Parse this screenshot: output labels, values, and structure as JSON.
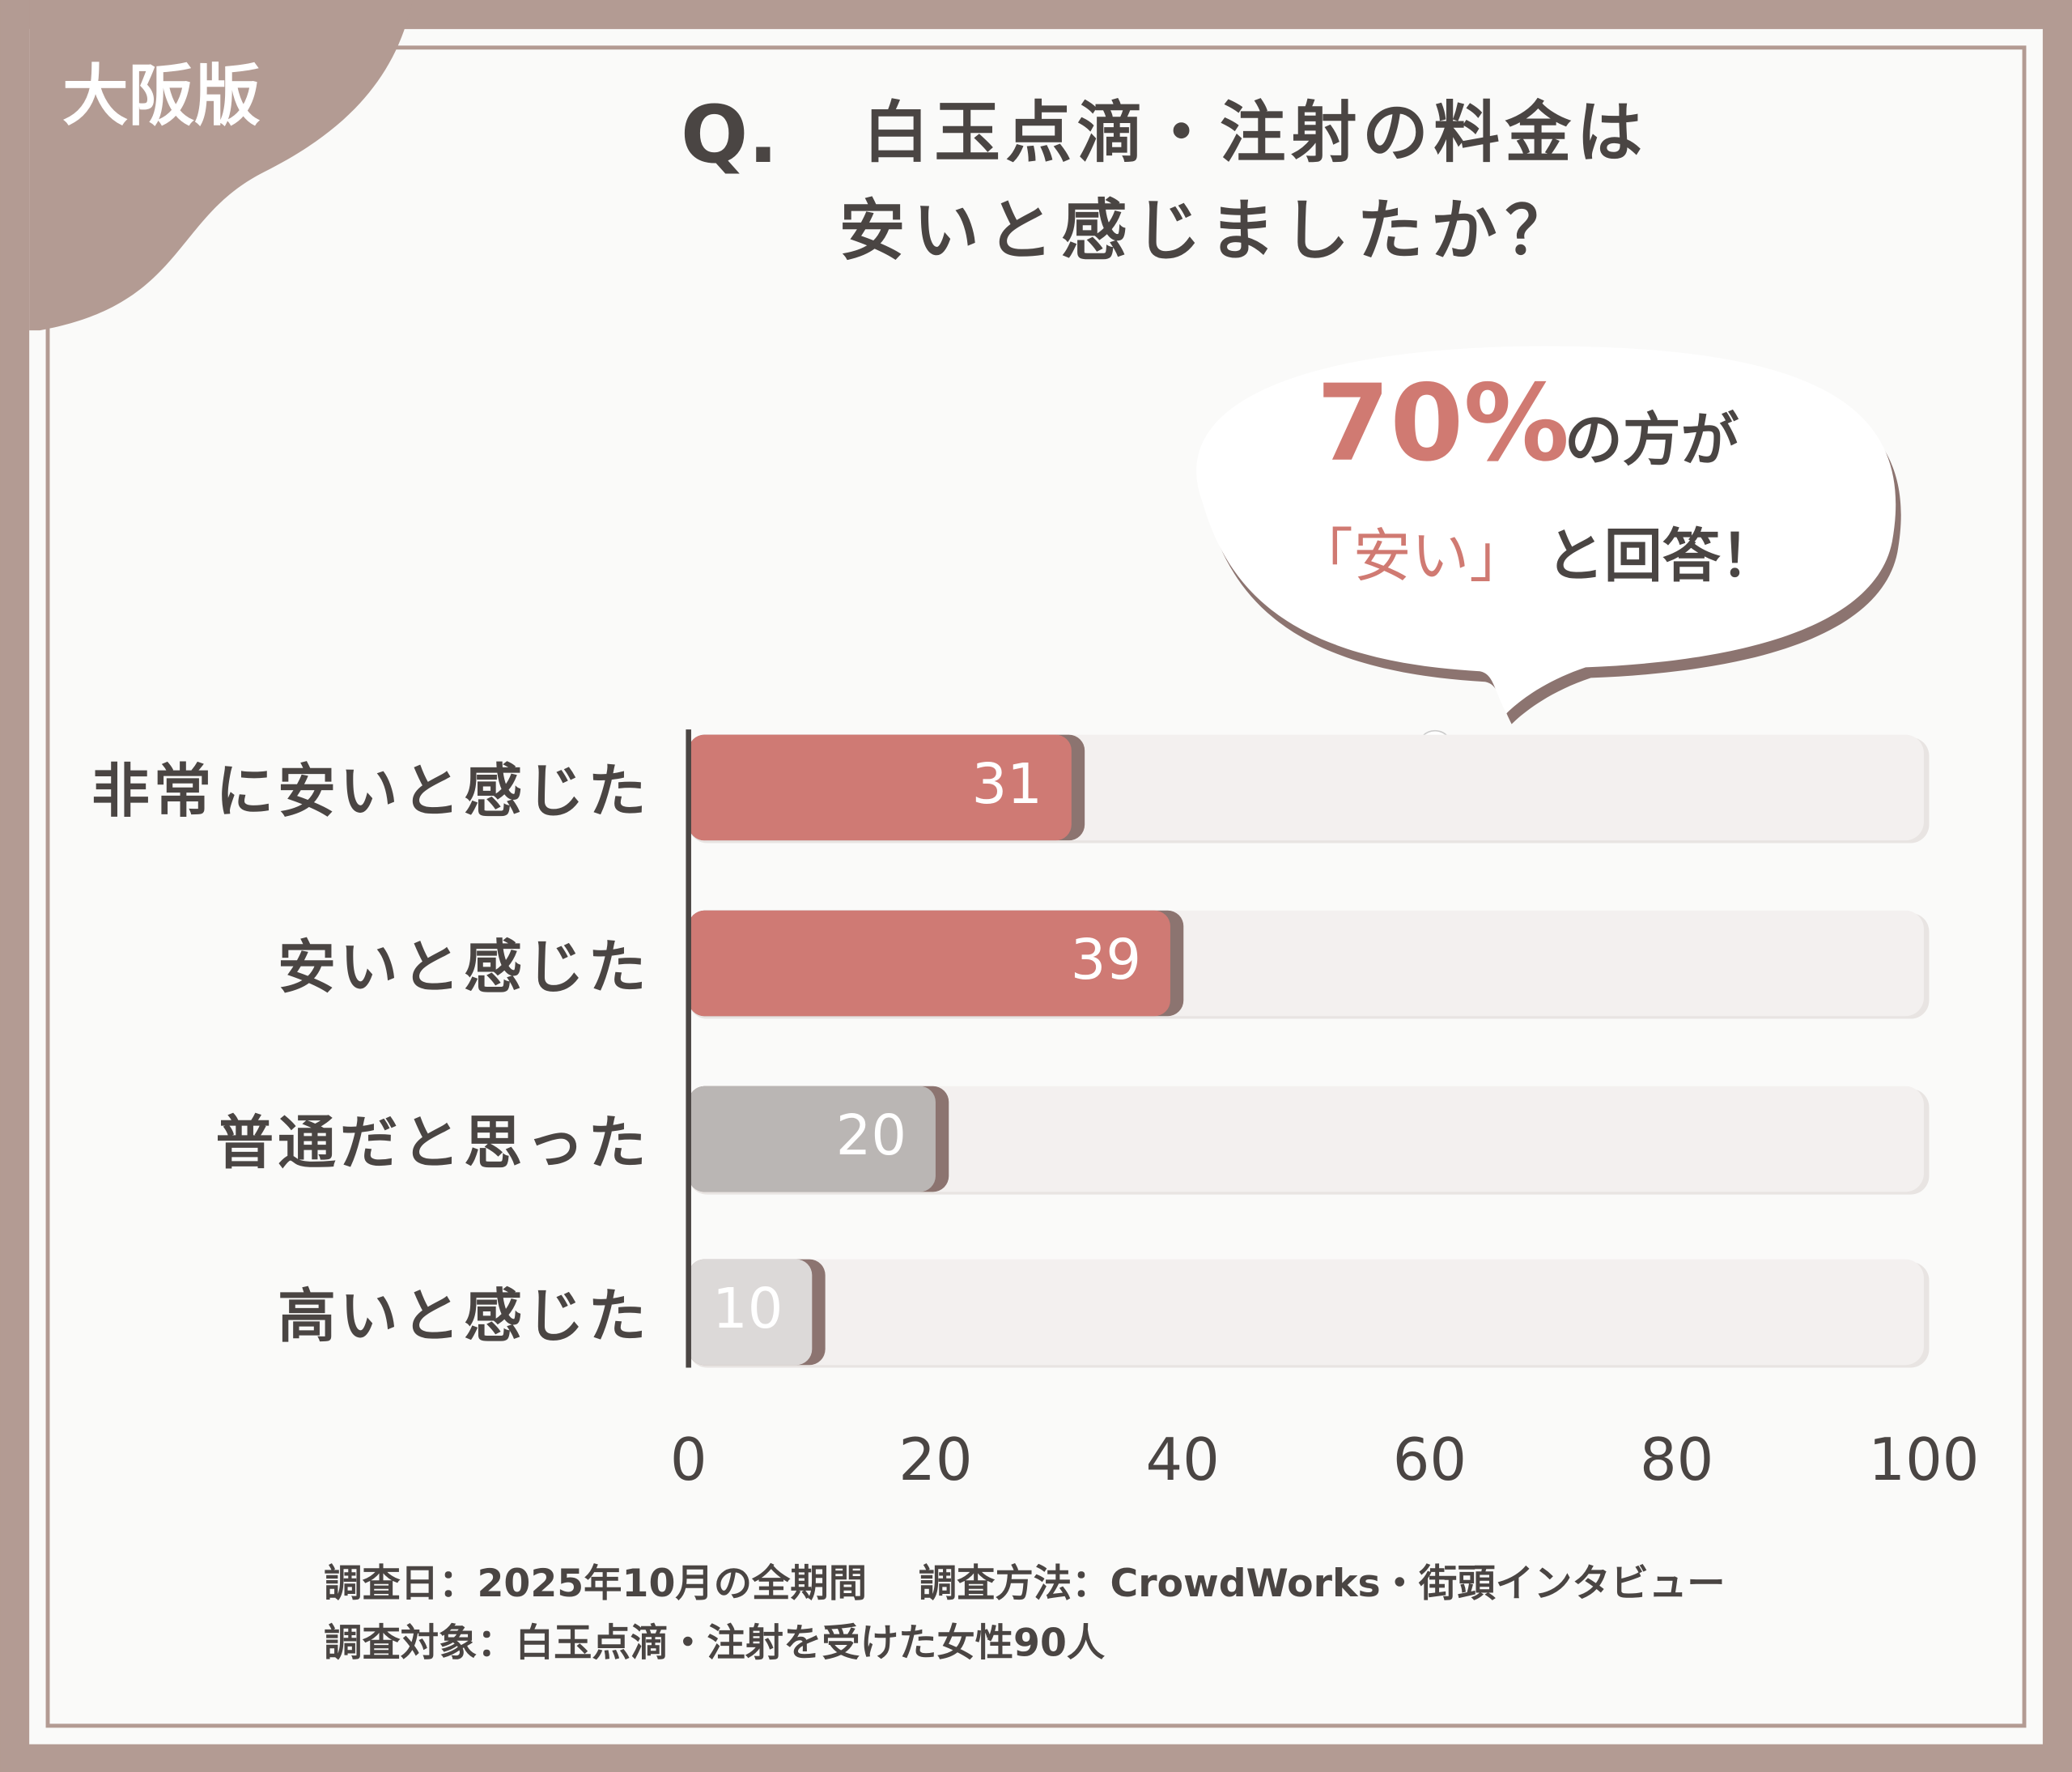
{
  "badge": "大阪版",
  "chart_data": {
    "type": "hbar",
    "question_mark": "Q.",
    "title": [
      "白玉点滴・注射の料金は",
      "安いと感じましたか？"
    ],
    "callout": {
      "highlight": "70%",
      "line1_rest": "の方が",
      "line2_highlight": "「安い」",
      "line2_rest": "と回答！"
    },
    "categories": [
      "非常に安いと感じた",
      "安いと感じた",
      "普通だと思った",
      "高いと感じた"
    ],
    "values": [
      31,
      39,
      20,
      10
    ],
    "colors": [
      "#cf7a74",
      "#cf7a74",
      "#bab6b4",
      "#dcd9d8"
    ],
    "xlim": [
      0,
      100
    ],
    "xticks": [
      0,
      20,
      40,
      60,
      80,
      100
    ],
    "footnotes": [
      "調査日：2025年10月の全期間　 調査方法：CrowdWorks・街頭インタビュー",
      "調査対象：白玉点滴・注射を受けた女性90人"
    ]
  }
}
